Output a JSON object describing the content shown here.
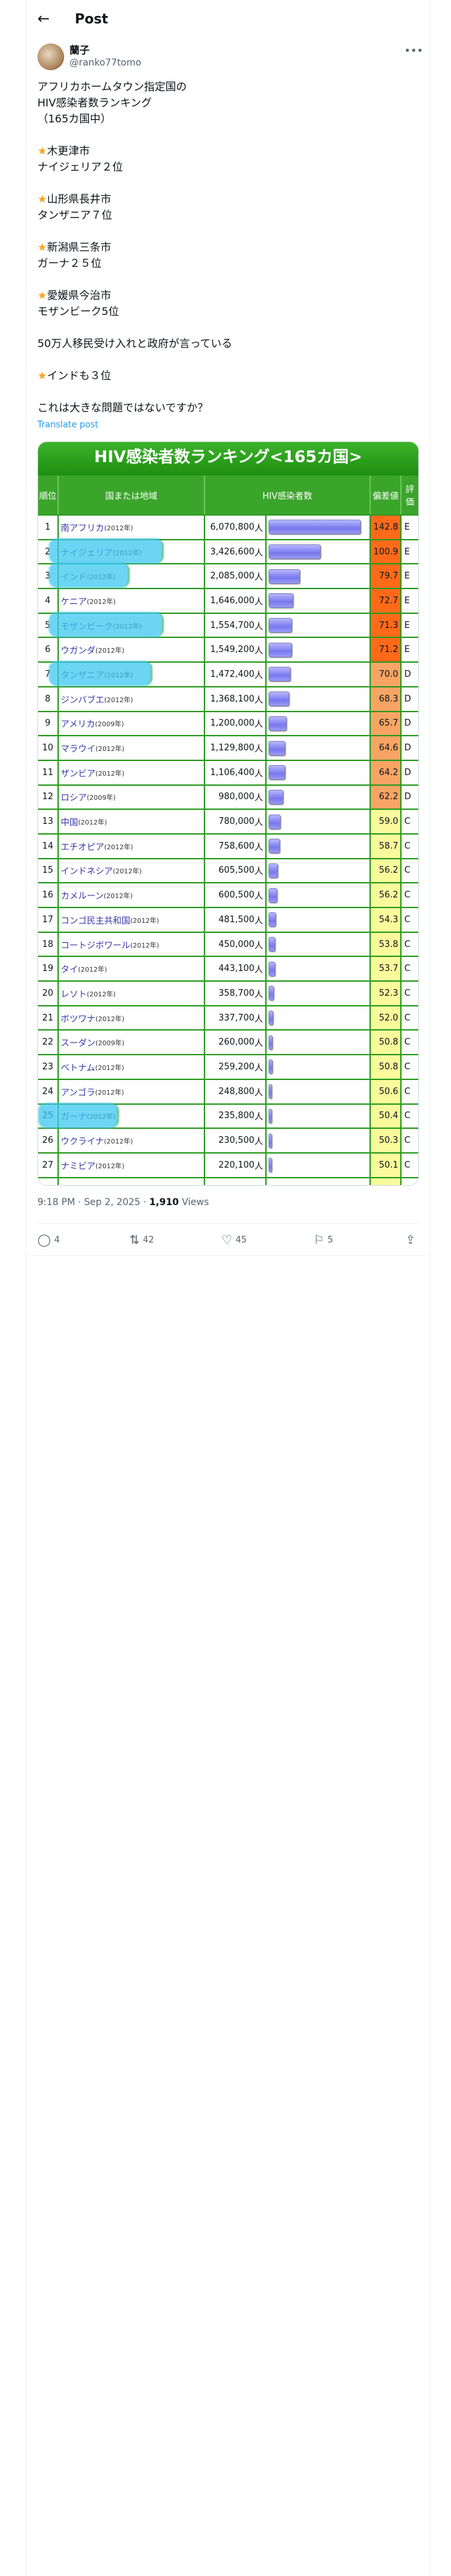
{
  "header": {
    "title": "Post",
    "back_icon": "arrow-left-icon"
  },
  "author": {
    "name": "蘭子",
    "handle": "@ranko77tomo"
  },
  "post": {
    "lines": [
      "アフリカホームタウン指定国の\nHIV感染者数ランキング\n（165カ国中）\n\n",
      "木更津市\nナイジェリア２位\n\n",
      "山形県長井市\nタンザニア７位\n\n",
      "新潟県三条市\nガーナ２５位\n\n",
      "愛媛県今治市\nモザンビーク5位\n\n50万人移民受け入れと政府が言っている\n\n",
      "インドも３位\n\nこれは大きな問題ではないですか？"
    ],
    "translate": "Translate post"
  },
  "table": {
    "title": "HIV感染者数ランキング<165カ国>",
    "headers": [
      "順位",
      "国または地域",
      "HIV感染者数",
      "偏差値",
      "評価"
    ],
    "unit": "人",
    "colors": {
      "high": "#ff6a1a",
      "mid": "#f8a464",
      "low": "#fafa9c",
      "highlight": "#3cc8f0"
    },
    "rows": [
      {
        "rank": "1",
        "name": "南アフリカ",
        "year": "(2012年)",
        "count": "6,070,800",
        "value": 6070800,
        "dev": "142.8",
        "grade": "E",
        "level": "high"
      },
      {
        "rank": "2",
        "name": "ナイジェリア",
        "year": "(2012年)",
        "count": "3,426,600",
        "value": 3426600,
        "dev": "100.9",
        "grade": "E",
        "level": "high",
        "highlighted": true
      },
      {
        "rank": "3",
        "name": "インド",
        "year": "(2012年)",
        "count": "2,085,000",
        "value": 2085000,
        "dev": "79.7",
        "grade": "E",
        "level": "high",
        "highlighted": true
      },
      {
        "rank": "4",
        "name": "ケニア",
        "year": "(2012年)",
        "count": "1,646,000",
        "value": 1646000,
        "dev": "72.7",
        "grade": "E",
        "level": "high"
      },
      {
        "rank": "5",
        "name": "モザンビーク",
        "year": "(2012年)",
        "count": "1,554,700",
        "value": 1554700,
        "dev": "71.3",
        "grade": "E",
        "level": "high",
        "highlighted": true
      },
      {
        "rank": "6",
        "name": "ウガンダ",
        "year": "(2012年)",
        "count": "1,549,200",
        "value": 1549200,
        "dev": "71.2",
        "grade": "E",
        "level": "high"
      },
      {
        "rank": "7",
        "name": "タンザニア",
        "year": "(2012年)",
        "count": "1,472,400",
        "value": 1472400,
        "dev": "70.0",
        "grade": "D",
        "level": "mid",
        "highlighted": true
      },
      {
        "rank": "8",
        "name": "ジンバブエ",
        "year": "(2012年)",
        "count": "1,368,100",
        "value": 1368100,
        "dev": "68.3",
        "grade": "D",
        "level": "mid"
      },
      {
        "rank": "9",
        "name": "アメリカ",
        "year": "(2009年)",
        "count": "1,200,000",
        "value": 1200000,
        "dev": "65.7",
        "grade": "D",
        "level": "mid"
      },
      {
        "rank": "10",
        "name": "マラウイ",
        "year": "(2012年)",
        "count": "1,129,800",
        "value": 1129800,
        "dev": "64.6",
        "grade": "D",
        "level": "mid"
      },
      {
        "rank": "11",
        "name": "ザンビア",
        "year": "(2012年)",
        "count": "1,106,400",
        "value": 1106400,
        "dev": "64.2",
        "grade": "D",
        "level": "mid"
      },
      {
        "rank": "12",
        "name": "ロシア",
        "year": "(2009年)",
        "count": "980,000",
        "value": 980000,
        "dev": "62.2",
        "grade": "D",
        "level": "mid"
      },
      {
        "rank": "13",
        "name": "中国",
        "year": "(2012年)",
        "count": "780,000",
        "value": 780000,
        "dev": "59.0",
        "grade": "C",
        "level": "low"
      },
      {
        "rank": "14",
        "name": "エチオピア",
        "year": "(2012年)",
        "count": "758,600",
        "value": 758600,
        "dev": "58.7",
        "grade": "C",
        "level": "low"
      },
      {
        "rank": "15",
        "name": "インドネシア",
        "year": "(2012年)",
        "count": "605,500",
        "value": 605500,
        "dev": "56.2",
        "grade": "C",
        "level": "low"
      },
      {
        "rank": "16",
        "name": "カメルーン",
        "year": "(2012年)",
        "count": "600,500",
        "value": 600500,
        "dev": "56.2",
        "grade": "C",
        "level": "low"
      },
      {
        "rank": "17",
        "name": "コンゴ民主共和国",
        "year": "(2012年)",
        "count": "481,500",
        "value": 481500,
        "dev": "54.3",
        "grade": "C",
        "level": "low"
      },
      {
        "rank": "18",
        "name": "コートジボワール",
        "year": "(2012年)",
        "count": "450,000",
        "value": 450000,
        "dev": "53.8",
        "grade": "C",
        "level": "low"
      },
      {
        "rank": "19",
        "name": "タイ",
        "year": "(2012年)",
        "count": "443,100",
        "value": 443100,
        "dev": "53.7",
        "grade": "C",
        "level": "low"
      },
      {
        "rank": "20",
        "name": "レソト",
        "year": "(2012年)",
        "count": "358,700",
        "value": 358700,
        "dev": "52.3",
        "grade": "C",
        "level": "low"
      },
      {
        "rank": "21",
        "name": "ボツワナ",
        "year": "(2012年)",
        "count": "337,700",
        "value": 337700,
        "dev": "52.0",
        "grade": "C",
        "level": "low"
      },
      {
        "rank": "22",
        "name": "スーダン",
        "year": "(2009年)",
        "count": "260,000",
        "value": 260000,
        "dev": "50.8",
        "grade": "C",
        "level": "low"
      },
      {
        "rank": "23",
        "name": "ベトナム",
        "year": "(2012年)",
        "count": "259,200",
        "value": 259200,
        "dev": "50.8",
        "grade": "C",
        "level": "low"
      },
      {
        "rank": "24",
        "name": "アンゴラ",
        "year": "(2012年)",
        "count": "248,800",
        "value": 248800,
        "dev": "50.6",
        "grade": "C",
        "level": "low"
      },
      {
        "rank": "25",
        "name": "ガーナ",
        "year": "(2012年)",
        "count": "235,800",
        "value": 235800,
        "dev": "50.4",
        "grade": "C",
        "level": "low",
        "highlighted": true
      },
      {
        "rank": "26",
        "name": "ウクライナ",
        "year": "(2012年)",
        "count": "230,500",
        "value": 230500,
        "dev": "50.3",
        "grade": "C",
        "level": "low"
      },
      {
        "rank": "27",
        "name": "ナミビア",
        "year": "(2012年)",
        "count": "220,100",
        "value": 220100,
        "dev": "50.1",
        "grade": "C",
        "level": "low"
      }
    ]
  },
  "meta": {
    "time": "9:18 PM · Sep 2, 2025 · ",
    "views": "1,910",
    "views_label": " Views"
  },
  "actions": [
    {
      "icon": "reply-icon",
      "glyph": "◯",
      "count": "4"
    },
    {
      "icon": "repost-icon",
      "glyph": "⇅",
      "count": "42"
    },
    {
      "icon": "like-icon",
      "glyph": "♡",
      "count": "45"
    },
    {
      "icon": "bookmark-icon",
      "glyph": "⚐",
      "count": "5"
    },
    {
      "icon": "share-icon",
      "glyph": "⇪",
      "count": ""
    }
  ]
}
